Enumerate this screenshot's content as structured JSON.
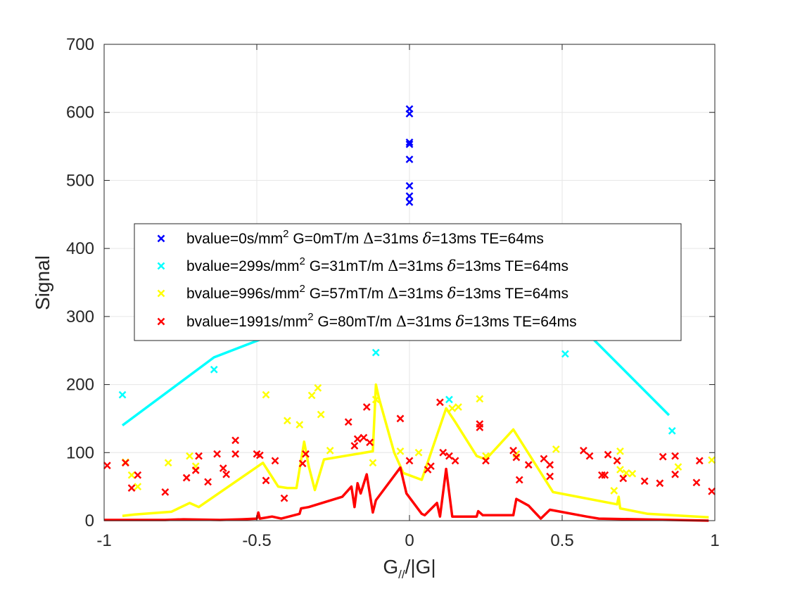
{
  "chart_data": {
    "type": "scatter",
    "title": "",
    "xlabel": "G//|G|",
    "xlabel_main": "G",
    "xlabel_sub": "//",
    "xlabel_rest": "/|G|",
    "ylabel": "Signal",
    "xlim": [
      -1,
      1
    ],
    "ylim": [
      0,
      700
    ],
    "xticks": [
      -1,
      -0.5,
      0,
      0.5,
      1
    ],
    "xtick_labels": [
      "-1",
      "-0.5",
      "0",
      "0.5",
      "1"
    ],
    "yticks": [
      0,
      100,
      200,
      300,
      400,
      500,
      600,
      700
    ],
    "ytick_labels": [
      "0",
      "100",
      "200",
      "300",
      "400",
      "500",
      "600",
      "700"
    ],
    "grid": true,
    "legend_position": "center-left",
    "series": [
      {
        "name": "bvalue=0s/mm2 G=0mT/m Δ=31ms δ=13ms TE=64ms",
        "legend": {
          "p1": "bvalue=0s/mm",
          "sup": "2",
          "p2": " G=0mT/m ",
          "Delta": "Δ",
          "p3": "=31ms ",
          "delta": "δ",
          "p4": "=13ms TE=64ms"
        },
        "color": "#0000ff",
        "points": [
          [
            0,
            605
          ],
          [
            0,
            598
          ],
          [
            0,
            556
          ],
          [
            0,
            553
          ],
          [
            0,
            531
          ],
          [
            0,
            492
          ],
          [
            0,
            477
          ],
          [
            0,
            468
          ]
        ],
        "line": []
      },
      {
        "name": "bvalue=299s/mm2 G=31mT/m Δ=31ms δ=13ms TE=64ms",
        "legend": {
          "p1": "bvalue=299s/mm",
          "sup": "2",
          "p2": " G=31mT/m ",
          "Delta": "Δ",
          "p3": "=31ms ",
          "delta": "δ",
          "p4": "=13ms TE=64ms"
        },
        "color": "#00ffff",
        "points": [
          [
            -0.94,
            185
          ],
          [
            -0.64,
            222
          ],
          [
            -0.11,
            247
          ],
          [
            0.13,
            178
          ],
          [
            0.51,
            245
          ],
          [
            0.86,
            132
          ]
        ],
        "line": [
          [
            -0.94,
            140
          ],
          [
            -0.64,
            240
          ],
          [
            -0.38,
            285
          ],
          [
            0.55,
            290
          ],
          [
            0.85,
            155
          ]
        ]
      },
      {
        "name": "bvalue=996s/mm2 G=57mT/m Δ=31ms δ=13ms TE=64ms",
        "legend": {
          "p1": "bvalue=996s/mm",
          "sup": "2",
          "p2": " G=57mT/m ",
          "Delta": "Δ",
          "p3": "=31ms ",
          "delta": "δ",
          "p4": "=13ms TE=64ms"
        },
        "color": "#ffff00",
        "points": [
          [
            -0.93,
            86
          ],
          [
            -0.91,
            67
          ],
          [
            -0.89,
            50
          ],
          [
            -0.79,
            85
          ],
          [
            -0.72,
            95
          ],
          [
            -0.7,
            80
          ],
          [
            -0.47,
            185
          ],
          [
            -0.4,
            147
          ],
          [
            -0.36,
            141
          ],
          [
            -0.32,
            184
          ],
          [
            -0.3,
            195
          ],
          [
            -0.29,
            156
          ],
          [
            -0.26,
            103
          ],
          [
            -0.12,
            85
          ],
          [
            -0.11,
            178
          ],
          [
            -0.03,
            102
          ],
          [
            0.03,
            100
          ],
          [
            0.14,
            165
          ],
          [
            0.16,
            167
          ],
          [
            0.23,
            179
          ],
          [
            0.25,
            95
          ],
          [
            0.35,
            98
          ],
          [
            0.48,
            105
          ],
          [
            0.67,
            44
          ],
          [
            0.68,
            88
          ],
          [
            0.69,
            102
          ],
          [
            0.69,
            75
          ],
          [
            0.71,
            70
          ],
          [
            0.73,
            69
          ],
          [
            0.88,
            79
          ],
          [
            0.99,
            89
          ]
        ],
        "line": [
          [
            -0.94,
            7
          ],
          [
            -0.9,
            9
          ],
          [
            -0.78,
            13
          ],
          [
            -0.72,
            26
          ],
          [
            -0.69,
            20
          ],
          [
            -0.48,
            85
          ],
          [
            -0.43,
            50
          ],
          [
            -0.4,
            48
          ],
          [
            -0.37,
            48
          ],
          [
            -0.345,
            116
          ],
          [
            -0.33,
            80
          ],
          [
            -0.31,
            45
          ],
          [
            -0.28,
            90
          ],
          [
            -0.12,
            102
          ],
          [
            -0.11,
            200
          ],
          [
            -0.1,
            180
          ],
          [
            -0.05,
            100
          ],
          [
            -0.02,
            70
          ],
          [
            0.04,
            60
          ],
          [
            0.12,
            165
          ],
          [
            0.15,
            145
          ],
          [
            0.22,
            95
          ],
          [
            0.25,
            90
          ],
          [
            0.34,
            134
          ],
          [
            0.47,
            42
          ],
          [
            0.68,
            24
          ],
          [
            0.685,
            35
          ],
          [
            0.69,
            18
          ],
          [
            0.78,
            10
          ],
          [
            0.98,
            5
          ]
        ]
      },
      {
        "name": "bvalue=1991s/mm2 G=80mT/m Δ=31ms δ=13ms TE=64ms",
        "legend": {
          "p1": "bvalue=1991s/mm",
          "sup": "2",
          "p2": " G=80mT/m ",
          "Delta": "Δ",
          "p3": "=31ms ",
          "delta": "δ",
          "p4": "=13ms TE=64ms"
        },
        "color": "#ff0000",
        "points": [
          [
            -0.99,
            81
          ],
          [
            -0.93,
            85
          ],
          [
            -0.91,
            48
          ],
          [
            -0.89,
            67
          ],
          [
            -0.8,
            42
          ],
          [
            -0.73,
            63
          ],
          [
            -0.7,
            74
          ],
          [
            -0.69,
            95
          ],
          [
            -0.66,
            57
          ],
          [
            -0.63,
            98
          ],
          [
            -0.61,
            77
          ],
          [
            -0.6,
            68
          ],
          [
            -0.57,
            98
          ],
          [
            -0.57,
            118
          ],
          [
            -0.5,
            98
          ],
          [
            -0.49,
            96
          ],
          [
            -0.47,
            59
          ],
          [
            -0.44,
            88
          ],
          [
            -0.41,
            33
          ],
          [
            -0.35,
            84
          ],
          [
            -0.34,
            98
          ],
          [
            -0.2,
            145
          ],
          [
            -0.18,
            110
          ],
          [
            -0.17,
            120
          ],
          [
            -0.15,
            122
          ],
          [
            -0.14,
            167
          ],
          [
            -0.13,
            115
          ],
          [
            -0.03,
            150
          ],
          [
            0.0,
            88
          ],
          [
            0.06,
            75
          ],
          [
            0.07,
            80
          ],
          [
            0.1,
            174
          ],
          [
            0.11,
            100
          ],
          [
            0.13,
            95
          ],
          [
            0.15,
            88
          ],
          [
            0.23,
            137
          ],
          [
            0.23,
            142
          ],
          [
            0.25,
            88
          ],
          [
            0.34,
            103
          ],
          [
            0.35,
            93
          ],
          [
            0.36,
            60
          ],
          [
            0.39,
            82
          ],
          [
            0.44,
            91
          ],
          [
            0.46,
            82
          ],
          [
            0.46,
            65
          ],
          [
            0.57,
            103
          ],
          [
            0.59,
            95
          ],
          [
            0.63,
            67
          ],
          [
            0.64,
            67
          ],
          [
            0.65,
            97
          ],
          [
            0.68,
            88
          ],
          [
            0.7,
            62
          ],
          [
            0.77,
            58
          ],
          [
            0.82,
            55
          ],
          [
            0.83,
            94
          ],
          [
            0.87,
            95
          ],
          [
            0.87,
            68
          ],
          [
            0.94,
            56
          ],
          [
            0.95,
            88
          ],
          [
            0.99,
            43
          ]
        ],
        "line": [
          [
            -1.0,
            1
          ],
          [
            -0.8,
            1
          ],
          [
            -0.74,
            2
          ],
          [
            -0.62,
            1
          ],
          [
            -0.55,
            2
          ],
          [
            -0.5,
            3
          ],
          [
            -0.495,
            12
          ],
          [
            -0.49,
            3
          ],
          [
            -0.45,
            6
          ],
          [
            -0.42,
            3
          ],
          [
            -0.36,
            10
          ],
          [
            -0.355,
            18
          ],
          [
            -0.33,
            20
          ],
          [
            -0.22,
            35
          ],
          [
            -0.19,
            50
          ],
          [
            -0.18,
            20
          ],
          [
            -0.17,
            55
          ],
          [
            -0.16,
            40
          ],
          [
            -0.14,
            68
          ],
          [
            -0.12,
            12
          ],
          [
            -0.11,
            30
          ],
          [
            -0.03,
            78
          ],
          [
            -0.01,
            40
          ],
          [
            0.04,
            10
          ],
          [
            0.05,
            8
          ],
          [
            0.09,
            26
          ],
          [
            0.1,
            6
          ],
          [
            0.12,
            76
          ],
          [
            0.14,
            6
          ],
          [
            0.22,
            6
          ],
          [
            0.225,
            14
          ],
          [
            0.24,
            8
          ],
          [
            0.34,
            8
          ],
          [
            0.35,
            32
          ],
          [
            0.39,
            22
          ],
          [
            0.43,
            3
          ],
          [
            0.46,
            16
          ],
          [
            0.58,
            6
          ],
          [
            0.62,
            3
          ],
          [
            0.98,
            0
          ]
        ]
      }
    ]
  }
}
